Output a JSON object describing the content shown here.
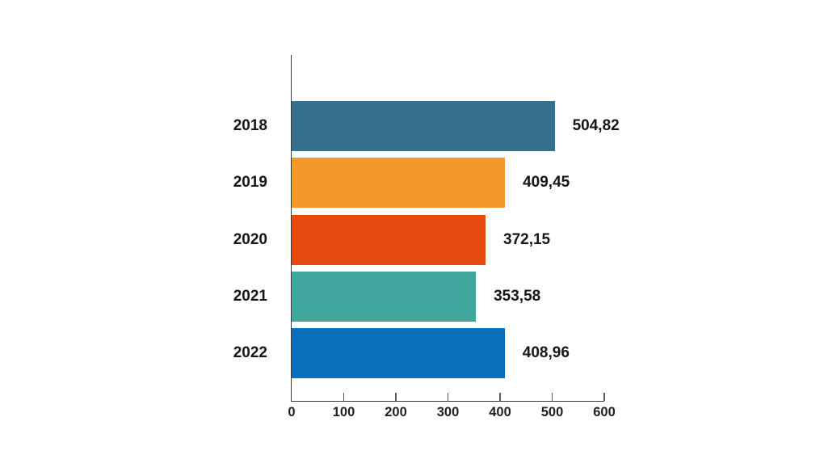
{
  "chart_data": {
    "type": "bar",
    "orientation": "horizontal",
    "title": "",
    "xlabel": "",
    "ylabel": "",
    "categories": [
      "2018",
      "2019",
      "2020",
      "2021",
      "2022"
    ],
    "values": [
      504.82,
      409.45,
      372.15,
      353.58,
      408.96
    ],
    "value_labels": [
      "504,82",
      "409,45",
      "372,15",
      "353,58",
      "408,96"
    ],
    "bar_colors": [
      "#36708F",
      "#F3992C",
      "#E54A10",
      "#3FA79C",
      "#0A70BE"
    ],
    "xlim": [
      0,
      600
    ],
    "x_ticks": [
      "0",
      "100",
      "200",
      "300",
      "400",
      "500",
      "600"
    ],
    "grid": false,
    "legend": false,
    "decimal_separator": ",",
    "colors": {
      "background": "#ffffff",
      "axis": "#3a3a3a",
      "tick": "#5a5a5a",
      "label": "#161616"
    }
  }
}
